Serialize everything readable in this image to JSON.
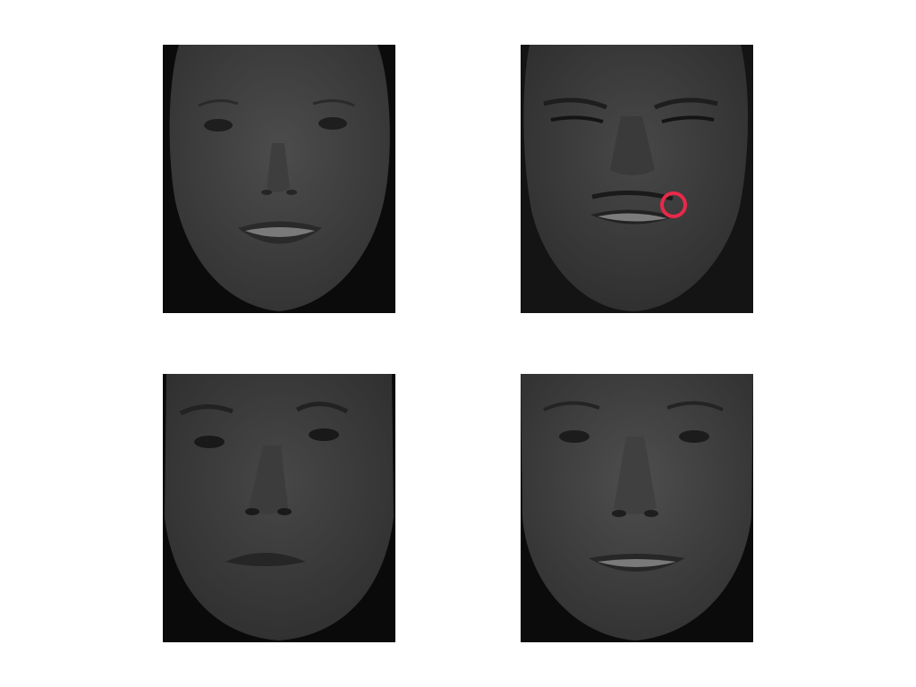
{
  "panels": [
    {
      "id": "face-1",
      "expression": "smile",
      "icon": "face-photo"
    },
    {
      "id": "face-2",
      "expression": "disgust",
      "icon": "face-photo"
    },
    {
      "id": "face-3",
      "expression": "sad",
      "icon": "face-photo"
    },
    {
      "id": "face-4",
      "expression": "neutral-smile",
      "icon": "face-photo"
    }
  ],
  "annotation": {
    "shape": "circle",
    "color": "#e8294a"
  },
  "colors": {
    "background": "#ffffff",
    "panel_background": "#0a0a0a",
    "skin_dark": "#3a3a3a",
    "skin_light": "#4a4a4a"
  }
}
